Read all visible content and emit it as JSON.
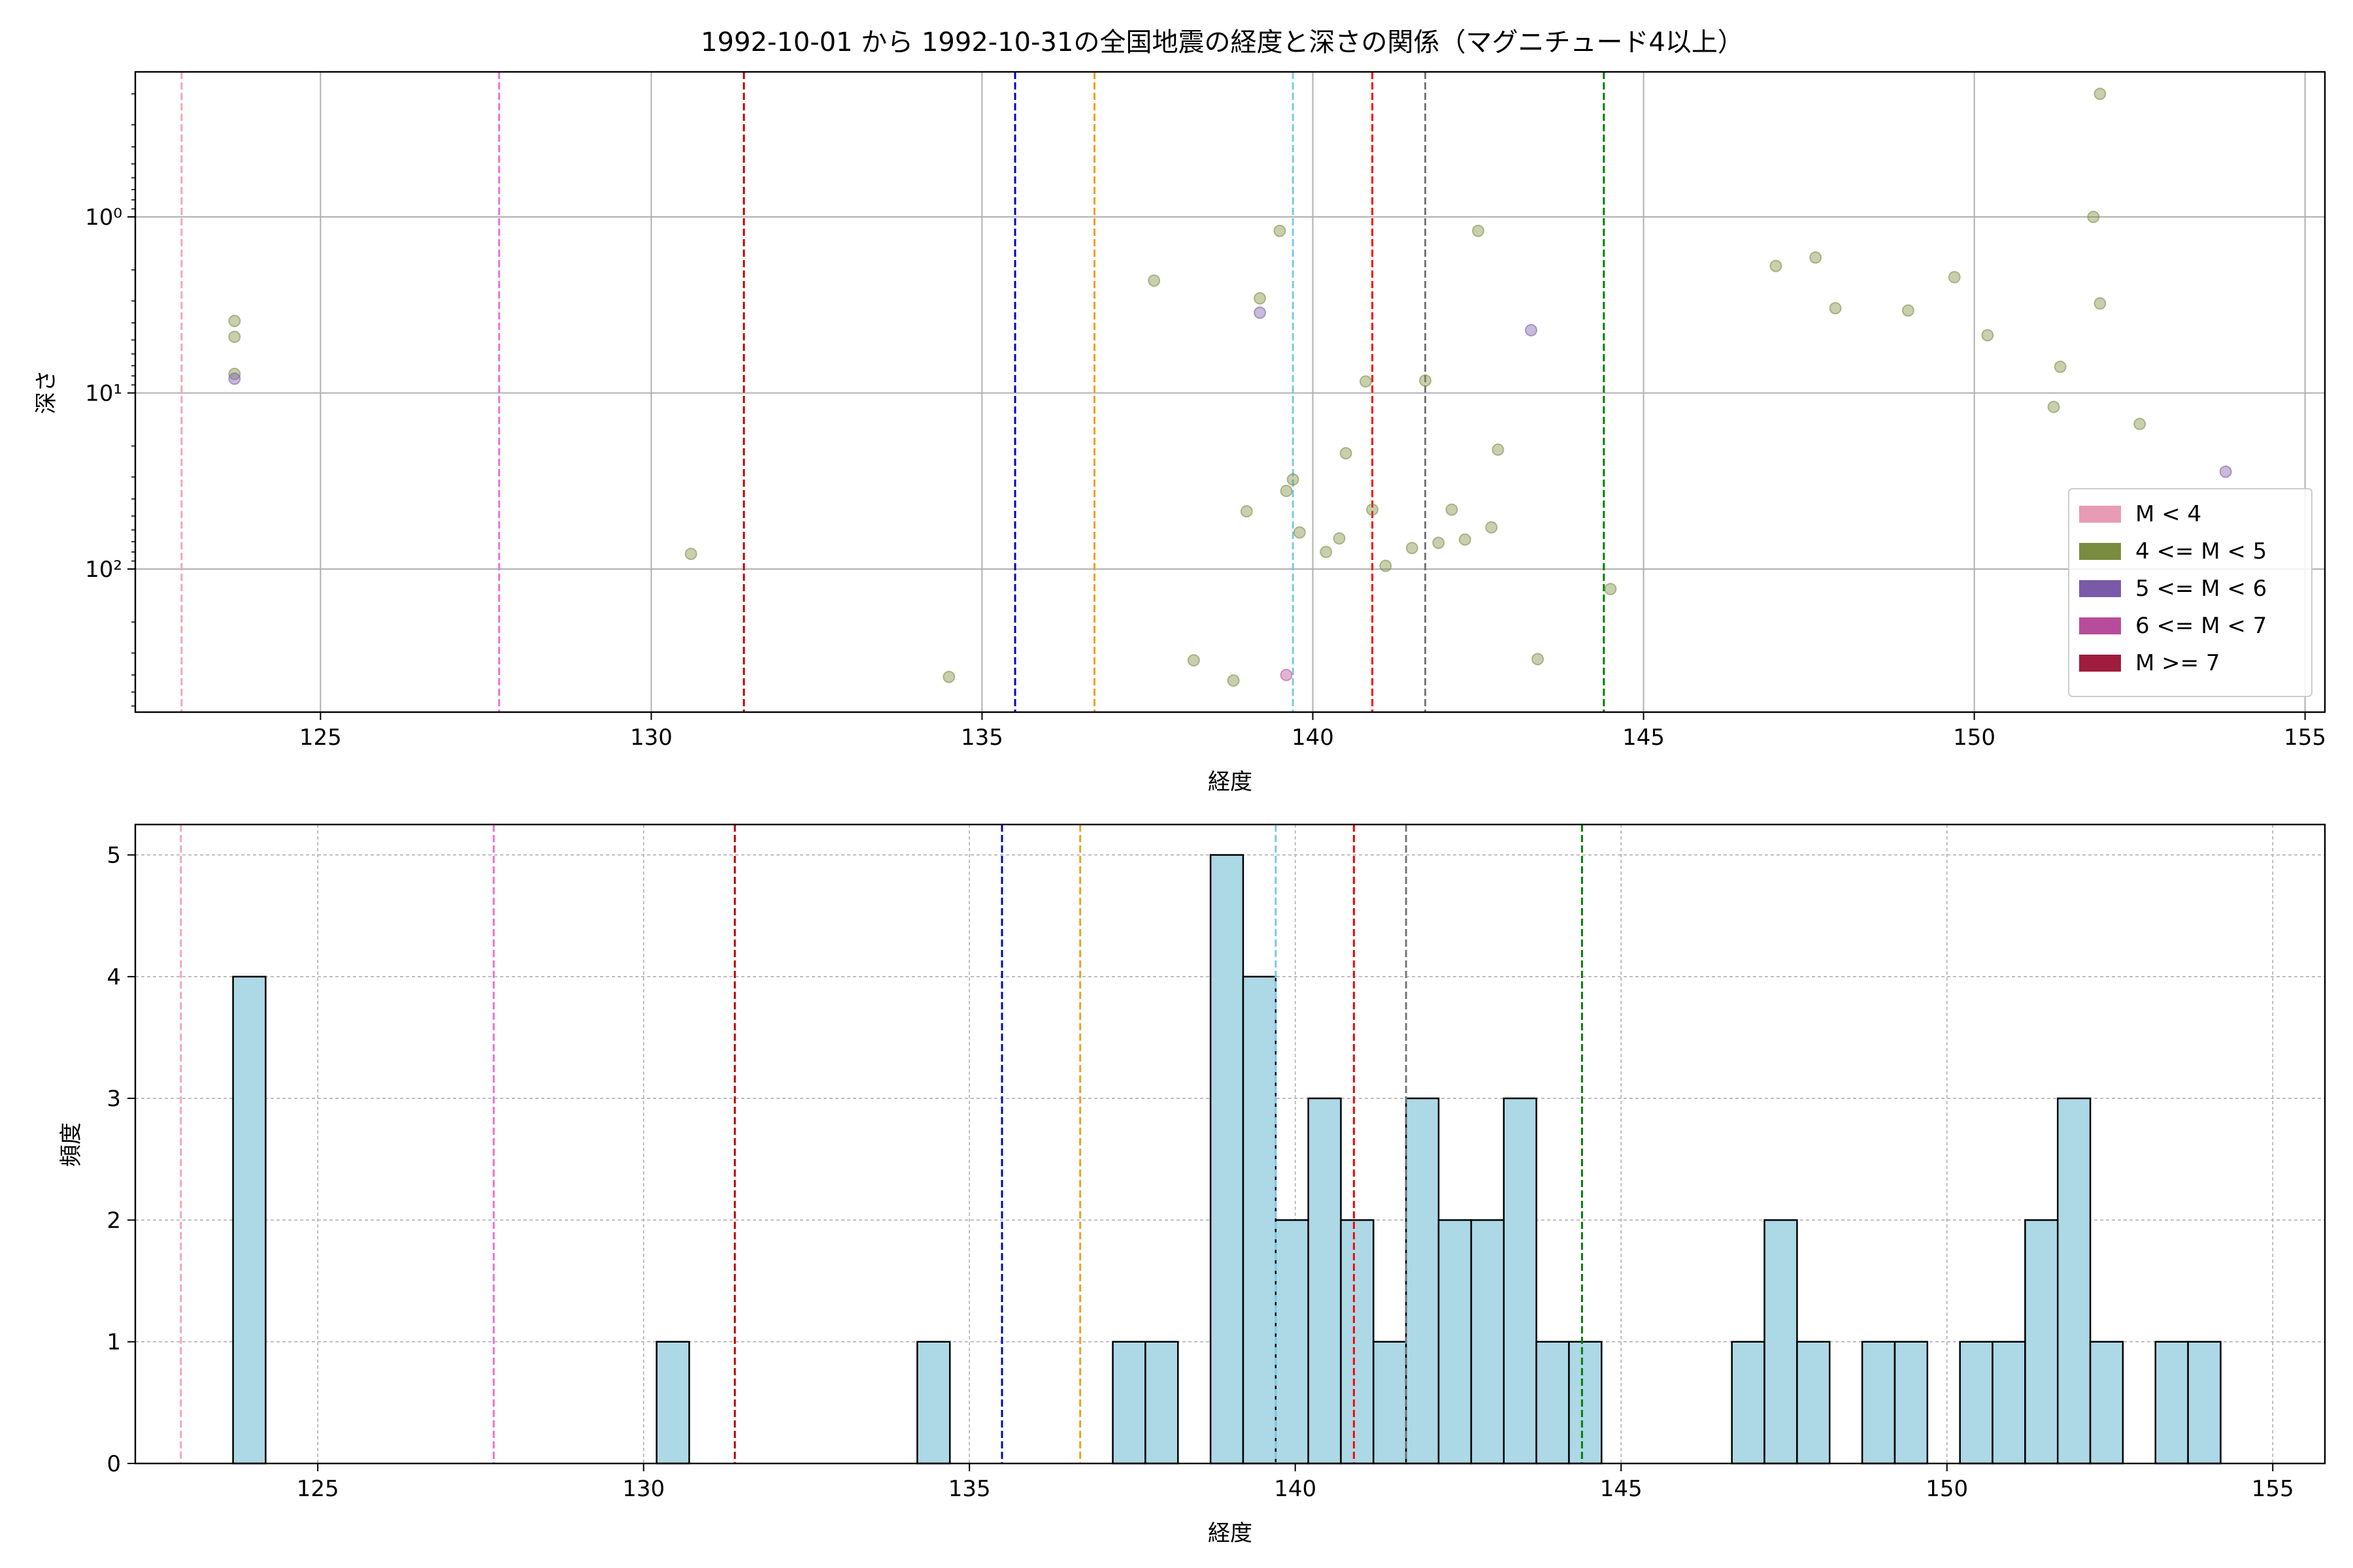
{
  "figure": {
    "title": "1992-10-01 から 1992-10-31の全国地震の経度と深さの関係（マグニチュード4以上）"
  },
  "colors": {
    "m_lt4": "#e89bb5",
    "m_4_5": "#7a8c3f",
    "m_5_6": "#7a5aa8",
    "m_6_7": "#b84c9c",
    "m_ge7": "#a01c3e",
    "hist_fill": "#add8e6"
  },
  "chart_data": [
    {
      "type": "scatter",
      "xlabel": "経度",
      "ylabel": "深さ",
      "xlim": [
        122.2,
        155.3
      ],
      "yscale": "log",
      "yinverted": true,
      "ylim": [
        650,
        0.15
      ],
      "grid": true,
      "xticks": [
        125,
        130,
        135,
        140,
        145,
        150,
        155
      ],
      "yticks": [
        {
          "value": 1,
          "label": "10⁰"
        },
        {
          "value": 10,
          "label": "10¹"
        },
        {
          "value": 100,
          "label": "10²"
        }
      ],
      "vlines": [
        {
          "x": 122.9,
          "color": "#f4a6b8"
        },
        {
          "x": 127.7,
          "color": "#ee72d8"
        },
        {
          "x": 131.4,
          "color": "#c00000"
        },
        {
          "x": 135.5,
          "color": "#0000cc"
        },
        {
          "x": 136.7,
          "color": "#f0a020"
        },
        {
          "x": 139.7,
          "color": "#7ec8e3"
        },
        {
          "x": 140.9,
          "color": "#ff0000"
        },
        {
          "x": 141.7,
          "color": "#777777"
        },
        {
          "x": 144.4,
          "color": "#008000"
        }
      ],
      "legend": {
        "position": "lower-right",
        "entries": [
          {
            "label": "M < 4",
            "color": "#e89bb5"
          },
          {
            "label": "4 <= M < 5",
            "color": "#7a8c3f"
          },
          {
            "label": "5 <= M < 6",
            "color": "#7a5aa8"
          },
          {
            "label": "6 <= M < 7",
            "color": "#b84c9c"
          },
          {
            "label": "M >= 7",
            "color": "#a01c3e"
          }
        ]
      },
      "series": [
        {
          "class": "4 <= M < 5",
          "color": "#7a8c3f",
          "points": [
            [
              123.7,
              3.9
            ],
            [
              123.7,
              4.8
            ],
            [
              123.7,
              7.8
            ],
            [
              130.6,
              82
            ],
            [
              134.5,
              410
            ],
            [
              137.6,
              2.3
            ],
            [
              138.2,
              330
            ],
            [
              138.8,
              430
            ],
            [
              139.0,
              47
            ],
            [
              139.2,
              2.9
            ],
            [
              139.5,
              1.2
            ],
            [
              139.6,
              36
            ],
            [
              139.7,
              31
            ],
            [
              139.8,
              62
            ],
            [
              140.2,
              80
            ],
            [
              140.4,
              67
            ],
            [
              140.5,
              22
            ],
            [
              140.8,
              8.6
            ],
            [
              140.9,
              46
            ],
            [
              141.1,
              96
            ],
            [
              141.5,
              76
            ],
            [
              141.7,
              8.5
            ],
            [
              141.9,
              71
            ],
            [
              142.1,
              46
            ],
            [
              142.3,
              68
            ],
            [
              142.5,
              1.2
            ],
            [
              142.7,
              58
            ],
            [
              142.8,
              21
            ],
            [
              143.4,
              325
            ],
            [
              144.5,
              130
            ],
            [
              147.0,
              1.9
            ],
            [
              147.6,
              1.7
            ],
            [
              147.9,
              3.3
            ],
            [
              149.0,
              3.4
            ],
            [
              149.7,
              2.2
            ],
            [
              150.2,
              4.7
            ],
            [
              151.2,
              12
            ],
            [
              151.3,
              7.1
            ],
            [
              151.8,
              1.0
            ],
            [
              151.9,
              0.2
            ],
            [
              151.9,
              3.1
            ],
            [
              152.5,
              15
            ]
          ]
        },
        {
          "class": "5 <= M < 6",
          "color": "#7a5aa8",
          "points": [
            [
              123.7,
              8.3
            ],
            [
              139.2,
              3.5
            ],
            [
              143.3,
              4.4
            ],
            [
              153.8,
              28
            ]
          ]
        },
        {
          "class": "6 <= M < 7",
          "color": "#b84c9c",
          "points": [
            [
              139.6,
              400
            ]
          ]
        }
      ]
    },
    {
      "type": "bar",
      "subtype": "histogram",
      "xlabel": "経度",
      "ylabel": "頻度",
      "xlim": [
        122.2,
        155.8
      ],
      "ylim": [
        0,
        5.25
      ],
      "grid": true,
      "xticks": [
        125,
        130,
        135,
        140,
        145,
        150,
        155
      ],
      "yticks": [
        0,
        1,
        2,
        3,
        4,
        5
      ],
      "vlines": [
        {
          "x": 122.9,
          "color": "#f4a6b8"
        },
        {
          "x": 127.7,
          "color": "#ee72d8"
        },
        {
          "x": 131.4,
          "color": "#c00000"
        },
        {
          "x": 135.5,
          "color": "#0000cc"
        },
        {
          "x": 136.7,
          "color": "#f0a020"
        },
        {
          "x": 139.7,
          "color": "#7ec8e3"
        },
        {
          "x": 140.9,
          "color": "#ff0000"
        },
        {
          "x": 141.7,
          "color": "#777777"
        },
        {
          "x": 144.4,
          "color": "#008000"
        }
      ],
      "bin_width": 0.5,
      "bins": [
        [
          123.7,
          4
        ],
        [
          130.2,
          1
        ],
        [
          134.2,
          1
        ],
        [
          137.2,
          1
        ],
        [
          137.7,
          1
        ],
        [
          138.7,
          5
        ],
        [
          139.2,
          4
        ],
        [
          139.7,
          2
        ],
        [
          140.2,
          3
        ],
        [
          140.7,
          2
        ],
        [
          141.2,
          1
        ],
        [
          141.7,
          3
        ],
        [
          142.2,
          2
        ],
        [
          142.7,
          2
        ],
        [
          143.2,
          3
        ],
        [
          143.7,
          1
        ],
        [
          144.2,
          1
        ],
        [
          146.7,
          1
        ],
        [
          147.2,
          2
        ],
        [
          147.7,
          1
        ],
        [
          148.7,
          1
        ],
        [
          149.2,
          1
        ],
        [
          150.2,
          1
        ],
        [
          150.7,
          1
        ],
        [
          151.2,
          2
        ],
        [
          151.7,
          3
        ],
        [
          152.2,
          1
        ],
        [
          153.2,
          1
        ],
        [
          153.7,
          1
        ]
      ]
    }
  ]
}
